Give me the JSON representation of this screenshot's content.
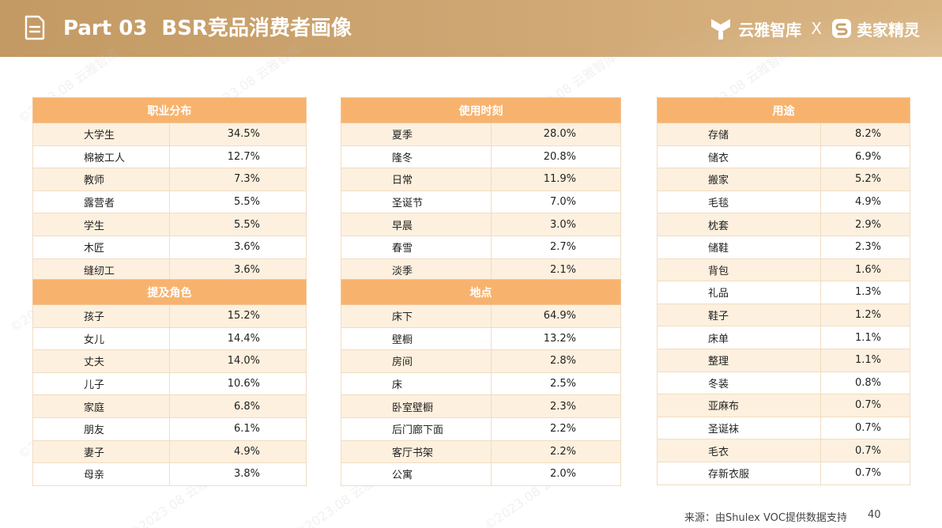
{
  "header": {
    "part": "Part 03",
    "title": "BSR竞品消费者画像",
    "brand_left": "云雅智库",
    "separator": "X",
    "brand_right": "卖家精灵"
  },
  "watermark": "©2023.08 云雅智库",
  "occupation": {
    "title": "职业分布",
    "rows": [
      {
        "name": "大学生",
        "value": "34.5%"
      },
      {
        "name": "棉被工人",
        "value": "12.7%"
      },
      {
        "name": "教师",
        "value": "7.3%"
      },
      {
        "name": "露营者",
        "value": "5.5%"
      },
      {
        "name": "学生",
        "value": "5.5%"
      },
      {
        "name": "木匠",
        "value": "3.6%"
      },
      {
        "name": "缝纫工",
        "value": "3.6%"
      }
    ]
  },
  "roles": {
    "title": "提及角色",
    "rows": [
      {
        "name": "孩子",
        "value": "15.2%"
      },
      {
        "name": "女儿",
        "value": "14.4%"
      },
      {
        "name": "丈夫",
        "value": "14.0%"
      },
      {
        "name": "儿子",
        "value": "10.6%"
      },
      {
        "name": "家庭",
        "value": "6.8%"
      },
      {
        "name": "朋友",
        "value": "6.1%"
      },
      {
        "name": "妻子",
        "value": "4.9%"
      },
      {
        "name": "母亲",
        "value": "3.8%"
      }
    ]
  },
  "usage_time": {
    "title": "使用时刻",
    "rows": [
      {
        "name": "夏季",
        "value": "28.0%"
      },
      {
        "name": "隆冬",
        "value": "20.8%"
      },
      {
        "name": "日常",
        "value": "11.9%"
      },
      {
        "name": "圣诞节",
        "value": "7.0%"
      },
      {
        "name": "早晨",
        "value": "3.0%"
      },
      {
        "name": "春雪",
        "value": "2.7%"
      },
      {
        "name": "淡季",
        "value": "2.1%"
      }
    ]
  },
  "location": {
    "title": "地点",
    "rows": [
      {
        "name": "床下",
        "value": "64.9%"
      },
      {
        "name": "壁橱",
        "value": "13.2%"
      },
      {
        "name": "房间",
        "value": "2.8%"
      },
      {
        "name": "床",
        "value": "2.5%"
      },
      {
        "name": "卧室壁橱",
        "value": "2.3%"
      },
      {
        "name": "后门廊下面",
        "value": "2.2%"
      },
      {
        "name": "客厅书架",
        "value": "2.2%"
      },
      {
        "name": "公寓",
        "value": "2.0%"
      }
    ]
  },
  "usage": {
    "title": "用途",
    "rows": [
      {
        "name": "存储",
        "value": "8.2%"
      },
      {
        "name": "储衣",
        "value": "6.9%"
      },
      {
        "name": "搬家",
        "value": "5.2%"
      },
      {
        "name": "毛毯",
        "value": "4.9%"
      },
      {
        "name": "枕套",
        "value": "2.9%"
      },
      {
        "name": "储鞋",
        "value": "2.3%"
      },
      {
        "name": "背包",
        "value": "1.6%"
      },
      {
        "name": "礼品",
        "value": "1.3%"
      },
      {
        "name": "鞋子",
        "value": "1.2%"
      },
      {
        "name": "床单",
        "value": "1.1%"
      },
      {
        "name": "整理",
        "value": "1.1%"
      },
      {
        "name": "冬装",
        "value": "0.8%"
      },
      {
        "name": "亚麻布",
        "value": "0.7%"
      },
      {
        "name": "圣诞袜",
        "value": "0.7%"
      },
      {
        "name": "毛衣",
        "value": "0.7%"
      },
      {
        "name": "存新衣服",
        "value": "0.7%"
      }
    ]
  },
  "footer": {
    "source": "来源：由Shulex VOC提供数据支持",
    "page": "40"
  },
  "colors": {
    "header_bg": "#c9a06a",
    "table_header": "#f7b36e",
    "row_alt": "#fdf0de"
  }
}
